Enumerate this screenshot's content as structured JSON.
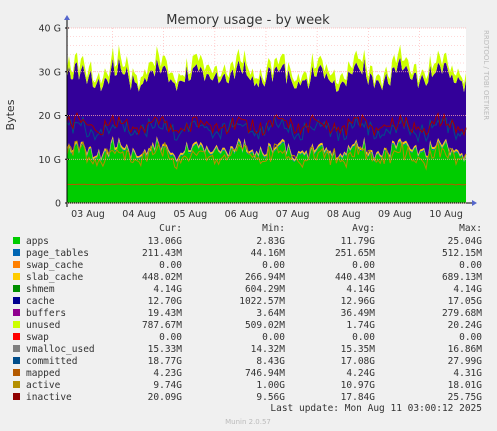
{
  "chart_data": {
    "type": "area",
    "title": "Memory usage - by week",
    "ylabel": "Bytes",
    "side_label": "RRDTOOL / TOBI OETIKER",
    "ylim": [
      0,
      40
    ],
    "yticks": [
      "0",
      "10 G",
      "20 G",
      "30 G",
      "40 G"
    ],
    "xticks": [
      "03 Aug",
      "04 Aug",
      "05 Aug",
      "06 Aug",
      "07 Aug",
      "08 Aug",
      "09 Aug",
      "10 Aug"
    ],
    "columns": [
      "Cur:",
      "Min:",
      "Avg:",
      "Max:"
    ],
    "series": [
      {
        "name": "apps",
        "color": "#00cc00",
        "cur": "13.06G",
        "min": "2.83G",
        "avg": "11.79G",
        "max": "25.04G",
        "level": 11.8
      },
      {
        "name": "page_tables",
        "color": "#0066b3",
        "cur": "211.43M",
        "min": "44.16M",
        "avg": "251.65M",
        "max": "512.15M",
        "level": 0.25
      },
      {
        "name": "swap_cache",
        "color": "#ff8000",
        "cur": "0.00",
        "min": "0.00",
        "avg": "0.00",
        "max": "0.00",
        "level": 0
      },
      {
        "name": "slab_cache",
        "color": "#ffcc00",
        "cur": "448.02M",
        "min": "266.94M",
        "avg": "440.43M",
        "max": "689.13M",
        "level": 0.44
      },
      {
        "name": "shmem",
        "color": "#330099",
        "cur": "4.14G",
        "min": "604.29M",
        "avg": "4.14G",
        "max": "4.14G",
        "level": 4.14
      },
      {
        "name": "cache",
        "color": "#330099",
        "cur": "12.70G",
        "min": "1022.57M",
        "avg": "12.96G",
        "max": "17.05G",
        "level": 12.96
      },
      {
        "name": "buffers",
        "color": "#990099",
        "cur": "19.43M",
        "min": "3.64M",
        "avg": "36.49M",
        "max": "279.68M",
        "level": 0.04
      },
      {
        "name": "unused",
        "color": "#ccff00",
        "cur": "787.67M",
        "min": "509.02M",
        "avg": "1.74G",
        "max": "20.24G",
        "level": 1.74
      },
      {
        "name": "swap",
        "color": "#ff0000",
        "cur": "0.00",
        "min": "0.00",
        "avg": "0.00",
        "max": "0.00",
        "level": 0
      },
      {
        "name": "vmalloc_used",
        "color": "#808080",
        "cur": "15.33M",
        "min": "14.32M",
        "avg": "15.35M",
        "max": "16.86M",
        "level": 0.015
      },
      {
        "name": "committed",
        "color": "#004d8a",
        "cur": "18.77G",
        "min": "8.43G",
        "avg": "17.08G",
        "max": "27.99G",
        "level": 17.08
      },
      {
        "name": "mapped",
        "color": "#b35a00",
        "cur": "4.23G",
        "min": "746.94M",
        "avg": "4.24G",
        "max": "4.31G",
        "level": 4.24
      },
      {
        "name": "active",
        "color": "#b38f00",
        "cur": "9.74G",
        "min": "1.00G",
        "avg": "10.97G",
        "max": "18.01G",
        "level": 10.97
      },
      {
        "name": "inactive",
        "color": "#a00000",
        "cur": "20.09G",
        "min": "9.56G",
        "avg": "17.84G",
        "max": "25.75G",
        "level": 17.84
      }
    ],
    "legend_colors": [
      "#00cc00",
      "#0066b3",
      "#ff8000",
      "#ffcc00",
      "#008f00",
      "#00008f",
      "#8f008f",
      "#ccff00",
      "#ff0000",
      "#808080",
      "#004d8a",
      "#b35a00",
      "#b38f00",
      "#8f0000"
    ],
    "grid": true,
    "footer": "Last update: Mon Aug 11 03:00:12 2025",
    "credit": "Munin 2.0.57"
  }
}
